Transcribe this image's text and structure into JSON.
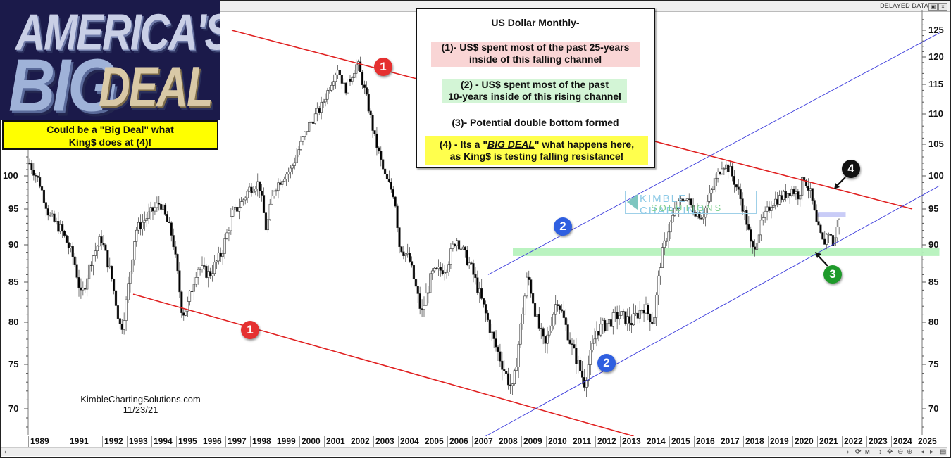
{
  "window": {
    "status_text": "DELAYED DATA",
    "close_label": "×",
    "camera_label": "▣"
  },
  "logo": {
    "line1": "AMERICA'S",
    "line2": "BIG",
    "line3": "DEAL"
  },
  "callout": {
    "line1": "Could be a \"Big Deal\" what",
    "line2": "King$ does at (4)!"
  },
  "infobox": {
    "title": "US Dollar Monthly-",
    "item1_line1": "(1)- US$ spent most of the past 25-years",
    "item1_line2": "inside of this falling channel",
    "item2_line1": "(2) - US$ spent most of the past",
    "item2_line2": "10-years inside of this rising channel",
    "item3": "(3)- Potential double bottom formed",
    "item4_prefix": "(4) - Its a \"",
    "item4_em": "BIG DEAL",
    "item4_suffix": "\" what happens here,",
    "item4_line2": "as King$ is testing falling resistance!"
  },
  "credit": {
    "site": "KimbleChartingSolutions.com",
    "date": "11/23/21"
  },
  "watermark": {
    "line1": "KIMBLE CHARTING",
    "line2": "SOLUTIONS"
  },
  "badges": [
    {
      "label": "1",
      "color": "#e53030"
    },
    {
      "label": "1",
      "color": "#e53030"
    },
    {
      "label": "2",
      "color": "#2f5fe0"
    },
    {
      "label": "2",
      "color": "#2f5fe0"
    },
    {
      "label": "3",
      "color": "#1e9a2a"
    },
    {
      "label": "4",
      "color": "#111111"
    }
  ],
  "toolbar": {
    "scroll_left": "‹",
    "scroll_right": "›",
    "refresh": "⟳",
    "period": "M",
    "vscale": "↕",
    "pan": "✥",
    "zoom_out": "⊖",
    "zoom_in": "⊕",
    "prev": "◂",
    "next": "▸",
    "calc": "▤"
  },
  "colors": {
    "falling_channel": "#e02020",
    "rising_channel": "#3b3bdc",
    "support_band": "#b6f2bd",
    "resistance_band": "#c6c9f7",
    "callout_yellow": "#ffff00"
  },
  "chart_data": {
    "type": "candlestick",
    "title": "US Dollar Monthly-",
    "xlabel": "",
    "ylabel": "",
    "ylim": [
      67,
      127
    ],
    "y_ticks": [
      125,
      120,
      115,
      110,
      105,
      100,
      95,
      90,
      85,
      80,
      75,
      70
    ],
    "x_ticks": [
      "1989",
      "1991",
      "1992",
      "1993",
      "1994",
      "1995",
      "1996",
      "1997",
      "1998",
      "1999",
      "2000",
      "2001",
      "2002",
      "2003",
      "2004",
      "2005",
      "2006",
      "2007",
      "2008",
      "2009",
      "2010",
      "2011",
      "2012",
      "2013",
      "2014",
      "2015",
      "2016",
      "2017",
      "2018",
      "2019",
      "2020",
      "2021",
      "2022",
      "2023",
      "2024",
      "2025"
    ],
    "grid": false,
    "price_path": {
      "x": [
        1989.0,
        1989.4,
        1989.8,
        1990.3,
        1990.8,
        1991.1,
        1991.5,
        1991.9,
        1992.3,
        1992.7,
        1992.9,
        1993.3,
        1993.8,
        1994.3,
        1994.8,
        1995.2,
        1995.4,
        1995.8,
        1996.3,
        1996.8,
        1997.2,
        1997.6,
        1997.9,
        1998.3,
        1998.6,
        1998.9,
        1999.3,
        1999.6,
        1999.9,
        2000.3,
        2000.8,
        2001.1,
        2001.5,
        2001.8,
        2002.0,
        2002.3,
        2002.7,
        2003.0,
        2003.4,
        2003.8,
        2004.0,
        2004.4,
        2004.9,
        2005.3,
        2005.9,
        2006.3,
        2006.9,
        2007.3,
        2007.8,
        2008.3,
        2008.6,
        2008.9,
        2009.2,
        2009.6,
        2009.9,
        2010.4,
        2010.7,
        2011.0,
        2011.5,
        2012.0,
        2012.5,
        2012.9,
        2013.4,
        2013.9,
        2014.3,
        2014.6,
        2014.9,
        2015.2,
        2015.6,
        2015.9,
        2016.3,
        2016.6,
        2016.9,
        2017.1,
        2017.4,
        2017.8,
        2018.1,
        2018.3,
        2018.7,
        2019.1,
        2019.6,
        2019.9,
        2020.2,
        2020.4,
        2020.7,
        2020.9,
        2021.2,
        2021.4,
        2021.6,
        2021.8,
        2021.9
      ],
      "y": [
        102,
        99,
        94,
        92,
        88,
        83,
        88,
        91,
        86,
        79,
        82,
        92,
        94,
        96,
        91,
        81,
        82,
        87,
        86,
        89,
        94,
        96,
        98,
        99,
        92,
        98,
        100,
        101,
        104,
        108,
        111,
        114,
        118,
        114,
        116,
        119,
        112,
        106,
        100,
        97,
        90,
        88,
        81,
        86,
        87,
        91,
        87,
        83,
        78,
        74,
        72,
        79,
        86,
        80,
        77,
        83,
        80,
        77,
        73,
        79,
        80,
        81,
        80,
        82,
        80,
        88,
        92,
        95,
        97,
        95,
        94,
        97,
        100,
        102,
        101,
        97,
        93,
        89,
        93,
        96,
        97,
        98,
        97,
        100,
        97,
        93,
        90,
        92,
        90,
        93,
        96
      ],
      "annotation_note": "Approximate monthly closing path read from chart"
    },
    "trendlines": [
      {
        "name": "Falling channel upper (1)",
        "from": [
          1997.2,
          125
        ],
        "to": [
          2024.8,
          95
        ],
        "color": "#e02020"
      },
      {
        "name": "Falling channel lower (1)",
        "from": [
          1993.2,
          83.5
        ],
        "to": [
          2013.5,
          67
        ],
        "color": "#e02020"
      },
      {
        "name": "Rising channel upper (2)",
        "from": [
          2007.6,
          86
        ],
        "to": [
          2025.9,
          124.5
        ],
        "color": "#3b3bdc"
      },
      {
        "name": "Rising channel lower (2)",
        "from": [
          2007.5,
          67
        ],
        "to": [
          2025.9,
          98.5
        ],
        "color": "#3b3bdc"
      }
    ],
    "bands": [
      {
        "name": "Support zone",
        "y_from": 88.5,
        "y_to": 89.6,
        "x_from": 2008.6,
        "x_to": 2025.9,
        "color": "#b6f2bd"
      },
      {
        "name": "Recent congestion",
        "y_from": 93.9,
        "y_to": 94.5,
        "x_from": 2020.9,
        "x_to": 2022.1,
        "color": "#c6c9f7"
      }
    ],
    "annotations": [
      {
        "label": "1",
        "note": "upper falling channel"
      },
      {
        "label": "1",
        "note": "lower falling channel"
      },
      {
        "label": "2",
        "note": "upper rising channel"
      },
      {
        "label": "2",
        "note": "lower rising channel"
      },
      {
        "label": "3",
        "note": "Potential double bottom ~89.5 (2021)"
      },
      {
        "label": "4",
        "note": "Testing falling resistance ~97 (Nov 2021)"
      }
    ]
  }
}
